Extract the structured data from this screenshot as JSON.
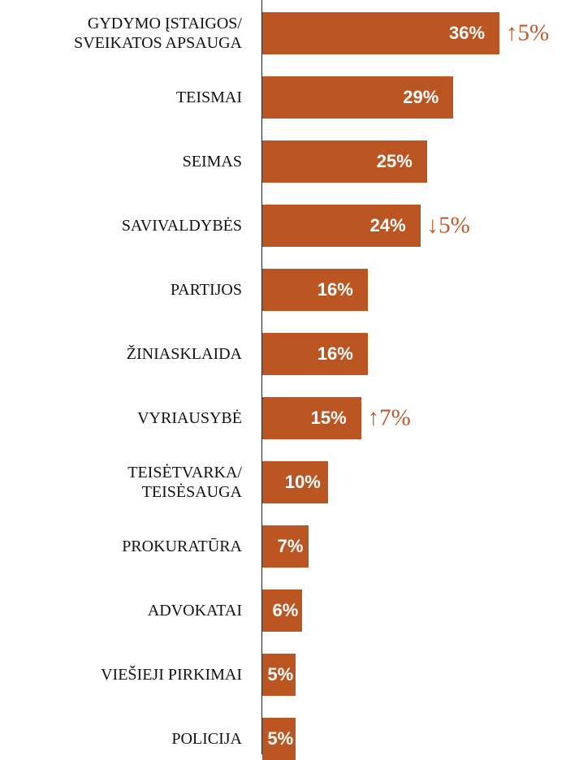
{
  "chart_data": {
    "type": "bar",
    "orientation": "horizontal",
    "categories": [
      "GYDYMO ĮSTAIGOS/\nSVEIKATOS APSAUGA",
      "TEISMAI",
      "SEIMAS",
      "SAVIVALDYBĖS",
      "PARTIJOS",
      "ŽINIASKLAIDA",
      "VYRIAUSYBĖ",
      "TEISĖTVARKA/\nTEISĖSAUGA",
      "PROKURATŪRA",
      "ADVOKATAI",
      "VIEŠIEJI PIRKIMAI",
      "POLICIJA"
    ],
    "values": [
      36,
      29,
      25,
      24,
      16,
      16,
      15,
      10,
      7,
      6,
      5,
      5
    ],
    "value_labels": [
      "36%",
      "29%",
      "25%",
      "24%",
      "16%",
      "16%",
      "15%",
      "10%",
      "7%",
      "6%",
      "5%",
      "5%"
    ],
    "changes": [
      "↑5%",
      null,
      null,
      "↓5%",
      null,
      null,
      "↑7%",
      null,
      null,
      null,
      null,
      null
    ],
    "color": "#bb5522"
  }
}
